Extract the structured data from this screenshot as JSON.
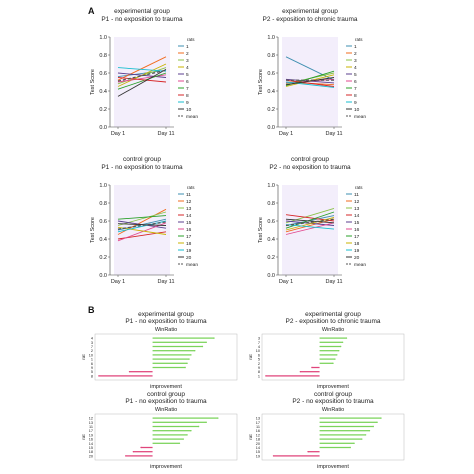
{
  "panel_labels": {
    "a": "A",
    "b": "B"
  },
  "legend_header": "rats",
  "chart_data": [
    {
      "type": "line",
      "title": "experimental group",
      "subtitle": "P1 - no exposition to trauma",
      "ylabel": "Test Score",
      "categories": [
        "Day 1",
        "Day 11"
      ],
      "ylim": [
        0,
        1
      ],
      "yticks": [
        0,
        0.2,
        0.4,
        0.6,
        0.8,
        1.0
      ],
      "series": [
        {
          "name": "1",
          "color": "#3e8fb0",
          "values": [
            0.56,
            0.63
          ]
        },
        {
          "name": "2",
          "color": "#f26b1d",
          "values": [
            0.52,
            0.78
          ]
        },
        {
          "name": "3",
          "color": "#8bc34a",
          "values": [
            0.48,
            0.66
          ]
        },
        {
          "name": "4",
          "color": "#c9b300",
          "values": [
            0.45,
            0.7
          ]
        },
        {
          "name": "5",
          "color": "#5b3f8f",
          "values": [
            0.6,
            0.55
          ]
        },
        {
          "name": "6",
          "color": "#e24a8f",
          "values": [
            0.5,
            0.58
          ]
        },
        {
          "name": "7",
          "color": "#2aa02a",
          "values": [
            0.42,
            0.6
          ]
        },
        {
          "name": "8",
          "color": "#d62728",
          "values": [
            0.55,
            0.5
          ]
        },
        {
          "name": "9",
          "color": "#17becf",
          "values": [
            0.66,
            0.62
          ]
        },
        {
          "name": "10",
          "color": "#333333",
          "values": [
            0.34,
            0.64
          ]
        },
        {
          "name": "mean",
          "color": "#555555",
          "dashed": true,
          "values": [
            0.51,
            0.63
          ]
        }
      ]
    },
    {
      "type": "line",
      "title": "experimental group",
      "subtitle": "P2 - exposition to chronic trauma",
      "ylabel": "Test Score",
      "categories": [
        "Day 1",
        "Day 11"
      ],
      "ylim": [
        0,
        1
      ],
      "yticks": [
        0,
        0.2,
        0.4,
        0.6,
        0.8,
        1.0
      ],
      "series": [
        {
          "name": "1",
          "color": "#3e8fb0",
          "values": [
            0.78,
            0.52
          ]
        },
        {
          "name": "2",
          "color": "#f26b1d",
          "values": [
            0.5,
            0.47
          ]
        },
        {
          "name": "3",
          "color": "#8bc34a",
          "values": [
            0.48,
            0.6
          ]
        },
        {
          "name": "4",
          "color": "#c9b300",
          "values": [
            0.45,
            0.58
          ]
        },
        {
          "name": "5",
          "color": "#5b3f8f",
          "values": [
            0.53,
            0.49
          ]
        },
        {
          "name": "6",
          "color": "#e24a8f",
          "values": [
            0.49,
            0.53
          ]
        },
        {
          "name": "7",
          "color": "#2aa02a",
          "values": [
            0.46,
            0.62
          ]
        },
        {
          "name": "8",
          "color": "#d62728",
          "values": [
            0.52,
            0.45
          ]
        },
        {
          "name": "9",
          "color": "#17becf",
          "values": [
            0.5,
            0.44
          ]
        },
        {
          "name": "10",
          "color": "#333333",
          "values": [
            0.47,
            0.55
          ]
        },
        {
          "name": "mean",
          "color": "#555555",
          "dashed": true,
          "values": [
            0.52,
            0.52
          ]
        }
      ]
    },
    {
      "type": "line",
      "title": "control group",
      "subtitle": "P1 - no exposition to trauma",
      "ylabel": "Test Score",
      "categories": [
        "Day 1",
        "Day 11"
      ],
      "ylim": [
        0,
        1
      ],
      "yticks": [
        0,
        0.2,
        0.4,
        0.6,
        0.8,
        1.0
      ],
      "series": [
        {
          "name": "11",
          "color": "#3e8fb0",
          "values": [
            0.5,
            0.62
          ]
        },
        {
          "name": "12",
          "color": "#f26b1d",
          "values": [
            0.45,
            0.73
          ]
        },
        {
          "name": "13",
          "color": "#8bc34a",
          "values": [
            0.55,
            0.7
          ]
        },
        {
          "name": "14",
          "color": "#d62728",
          "values": [
            0.4,
            0.48
          ]
        },
        {
          "name": "15",
          "color": "#5b3f8f",
          "values": [
            0.6,
            0.52
          ]
        },
        {
          "name": "16",
          "color": "#e24a8f",
          "values": [
            0.38,
            0.58
          ]
        },
        {
          "name": "17",
          "color": "#2aa02a",
          "values": [
            0.62,
            0.66
          ]
        },
        {
          "name": "18",
          "color": "#c9b300",
          "values": [
            0.53,
            0.45
          ]
        },
        {
          "name": "19",
          "color": "#17becf",
          "values": [
            0.48,
            0.6
          ]
        },
        {
          "name": "20",
          "color": "#333333",
          "values": [
            0.57,
            0.55
          ]
        },
        {
          "name": "mean",
          "color": "#555555",
          "dashed": true,
          "values": [
            0.51,
            0.59
          ]
        }
      ]
    },
    {
      "type": "line",
      "title": "control group",
      "subtitle": "P2 - no exposition to trauma",
      "ylabel": "Test Score",
      "categories": [
        "Day 1",
        "Day 11"
      ],
      "ylim": [
        0,
        1
      ],
      "yticks": [
        0,
        0.2,
        0.4,
        0.6,
        0.8,
        1.0
      ],
      "series": [
        {
          "name": "11",
          "color": "#3e8fb0",
          "values": [
            0.55,
            0.66
          ]
        },
        {
          "name": "12",
          "color": "#f26b1d",
          "values": [
            0.48,
            0.62
          ]
        },
        {
          "name": "13",
          "color": "#8bc34a",
          "values": [
            0.58,
            0.74
          ]
        },
        {
          "name": "14",
          "color": "#d62728",
          "values": [
            0.67,
            0.6
          ]
        },
        {
          "name": "15",
          "color": "#5b3f8f",
          "values": [
            0.6,
            0.55
          ]
        },
        {
          "name": "16",
          "color": "#e24a8f",
          "values": [
            0.45,
            0.58
          ]
        },
        {
          "name": "17",
          "color": "#2aa02a",
          "values": [
            0.52,
            0.7
          ]
        },
        {
          "name": "18",
          "color": "#c9b300",
          "values": [
            0.5,
            0.64
          ]
        },
        {
          "name": "19",
          "color": "#17becf",
          "values": [
            0.56,
            0.51
          ]
        },
        {
          "name": "20",
          "color": "#333333",
          "values": [
            0.62,
            0.58
          ]
        },
        {
          "name": "mean",
          "color": "#555555",
          "dashed": true,
          "values": [
            0.55,
            0.62
          ]
        }
      ]
    },
    {
      "type": "bar",
      "title": "experimental group",
      "subtitle": "P1 - no exposition to trauma",
      "chart_title": "WinRatio",
      "xlabel": "improvement",
      "ylabel": "rat",
      "xlim": [
        -1.5,
        2.2
      ],
      "categories": [
        "4",
        "3",
        "7",
        "2",
        "10",
        "1",
        "6",
        "9",
        "5",
        "8"
      ],
      "values": [
        1.6,
        1.4,
        1.3,
        1.1,
        1.0,
        0.95,
        0.9,
        0.85,
        -0.6,
        -1.4
      ],
      "positive_color": "#7bd35b",
      "negative_color": "#e0457b"
    },
    {
      "type": "bar",
      "title": "experimental group",
      "subtitle": "P2 - exposition to chronic trauma",
      "chart_title": "WinRatio",
      "xlabel": "improvement",
      "ylabel": "rat",
      "xlim": [
        -1.5,
        2.2
      ],
      "categories": [
        "3",
        "7",
        "4",
        "10",
        "6",
        "5",
        "2",
        "9",
        "8",
        "1"
      ],
      "values": [
        0.7,
        0.6,
        0.55,
        0.5,
        0.45,
        0.4,
        0.35,
        -0.2,
        -0.5,
        -1.4
      ],
      "positive_color": "#7bd35b",
      "negative_color": "#e0457b"
    },
    {
      "type": "bar",
      "title": "control group",
      "subtitle": "P1 - no exposition to trauma",
      "chart_title": "WinRatio",
      "xlabel": "improvement",
      "ylabel": "rat",
      "xlim": [
        -1.5,
        2.2
      ],
      "categories": [
        "12",
        "13",
        "11",
        "17",
        "19",
        "16",
        "14",
        "15",
        "18",
        "20"
      ],
      "values": [
        1.7,
        1.4,
        1.2,
        1.0,
        0.9,
        0.8,
        0.7,
        -0.3,
        -0.5,
        -0.7
      ],
      "positive_color": "#7bd35b",
      "negative_color": "#e0457b"
    },
    {
      "type": "bar",
      "title": "control group",
      "subtitle": "P2 - no exposition to trauma",
      "chart_title": "WinRatio",
      "xlabel": "improvement",
      "ylabel": "rat",
      "xlim": [
        -1.5,
        2.2
      ],
      "categories": [
        "13",
        "17",
        "11",
        "16",
        "12",
        "18",
        "20",
        "14",
        "15",
        "19"
      ],
      "values": [
        1.6,
        1.5,
        1.4,
        1.3,
        1.2,
        1.1,
        0.9,
        0.8,
        -0.3,
        -1.2
      ],
      "positive_color": "#7bd35b",
      "negative_color": "#e0457b"
    }
  ]
}
